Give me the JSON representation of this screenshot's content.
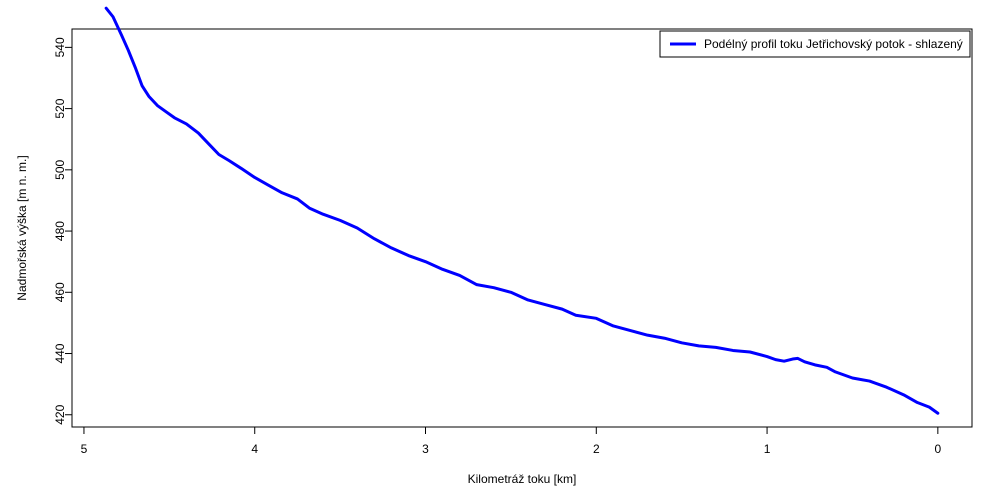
{
  "chart_data": {
    "type": "line",
    "xlabel": "Kilometráž toku [km]",
    "ylabel": "Nadmořská výška [m n. m.]",
    "x_reversed": true,
    "xlim": [
      5.07,
      -0.2
    ],
    "ylim": [
      416,
      546
    ],
    "x_ticks": [
      5,
      4,
      3,
      2,
      1,
      0
    ],
    "y_ticks": [
      420,
      440,
      460,
      480,
      500,
      520,
      540
    ],
    "legend_position": "top-right",
    "grid": false,
    "series": [
      {
        "name": "Podélný profil toku Jetřichovský potok - shlazený",
        "color": "#0000ff",
        "points": [
          [
            4.87,
            552.8
          ],
          [
            4.83,
            550.0
          ],
          [
            4.78,
            544.0
          ],
          [
            4.74,
            539.0
          ],
          [
            4.7,
            533.5
          ],
          [
            4.66,
            527.5
          ],
          [
            4.62,
            524.0
          ],
          [
            4.57,
            521.0
          ],
          [
            4.52,
            519.0
          ],
          [
            4.47,
            517.0
          ],
          [
            4.4,
            515.0
          ],
          [
            4.33,
            512.0
          ],
          [
            4.27,
            508.5
          ],
          [
            4.21,
            505.0
          ],
          [
            4.15,
            503.0
          ],
          [
            4.08,
            500.5
          ],
          [
            4.0,
            497.5
          ],
          [
            3.92,
            495.0
          ],
          [
            3.84,
            492.5
          ],
          [
            3.75,
            490.5
          ],
          [
            3.68,
            487.5
          ],
          [
            3.6,
            485.5
          ],
          [
            3.5,
            483.5
          ],
          [
            3.4,
            481.0
          ],
          [
            3.3,
            477.5
          ],
          [
            3.2,
            474.5
          ],
          [
            3.1,
            472.0
          ],
          [
            3.0,
            470.0
          ],
          [
            2.9,
            467.5
          ],
          [
            2.8,
            465.5
          ],
          [
            2.7,
            462.5
          ],
          [
            2.6,
            461.5
          ],
          [
            2.5,
            460.0
          ],
          [
            2.4,
            457.5
          ],
          [
            2.3,
            456.0
          ],
          [
            2.2,
            454.5
          ],
          [
            2.12,
            452.5
          ],
          [
            2.0,
            451.5
          ],
          [
            1.9,
            449.0
          ],
          [
            1.8,
            447.5
          ],
          [
            1.7,
            446.0
          ],
          [
            1.6,
            445.0
          ],
          [
            1.5,
            443.5
          ],
          [
            1.4,
            442.5
          ],
          [
            1.3,
            442.0
          ],
          [
            1.2,
            441.0
          ],
          [
            1.1,
            440.5
          ],
          [
            1.0,
            439.0
          ],
          [
            0.95,
            438.0
          ],
          [
            0.9,
            437.5
          ],
          [
            0.85,
            438.2
          ],
          [
            0.82,
            438.4
          ],
          [
            0.78,
            437.3
          ],
          [
            0.72,
            436.3
          ],
          [
            0.65,
            435.5
          ],
          [
            0.6,
            434.0
          ],
          [
            0.5,
            432.0
          ],
          [
            0.4,
            431.0
          ],
          [
            0.3,
            429.0
          ],
          [
            0.2,
            426.5
          ],
          [
            0.12,
            424.0
          ],
          [
            0.05,
            422.5
          ],
          [
            0.0,
            420.5
          ]
        ]
      }
    ]
  }
}
